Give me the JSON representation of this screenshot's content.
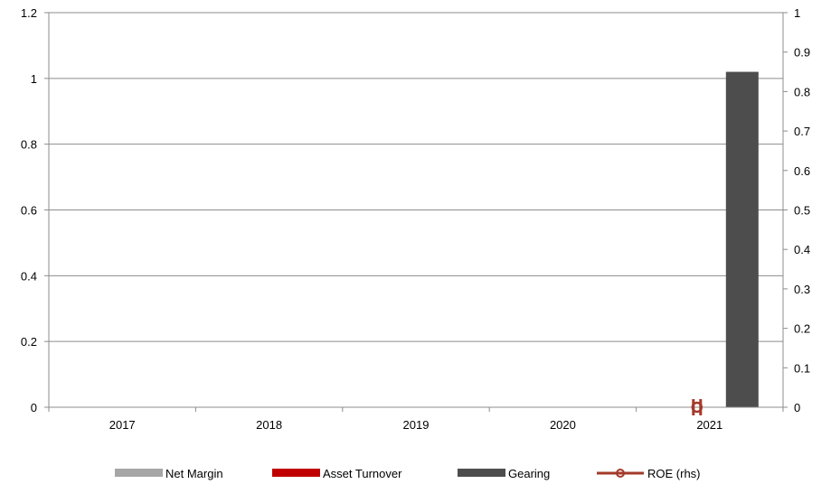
{
  "chart_data": {
    "type": "bar",
    "categories": [
      "2017",
      "2018",
      "2019",
      "2020",
      "2021"
    ],
    "y_left": {
      "ylim": [
        0,
        1.2
      ],
      "ticks": [
        "0",
        "0.2",
        "0.4",
        "0.6",
        "0.8",
        "1",
        "1.2"
      ],
      "tick_values": [
        0,
        0.2,
        0.4,
        0.6,
        0.8,
        1,
        1.2
      ]
    },
    "y_right": {
      "ylim": [
        0,
        1
      ],
      "ticks": [
        "0",
        "0.1",
        "0.2",
        "0.3",
        "0.4",
        "0.5",
        "0.6",
        "0.7",
        "0.8",
        "0.9",
        "1"
      ],
      "tick_values": [
        0,
        0.1,
        0.2,
        0.3,
        0.4,
        0.5,
        0.6,
        0.7,
        0.8,
        0.9,
        1
      ]
    },
    "grid": true,
    "legend_position": "bottom",
    "series": [
      {
        "name": "Net Margin",
        "kind": "bar",
        "axis": "left",
        "color": "#a6a6a6",
        "values": [
          null,
          null,
          null,
          null,
          0
        ]
      },
      {
        "name": "Asset Turnover",
        "kind": "bar",
        "axis": "left",
        "color": "#c00000",
        "values": [
          null,
          null,
          null,
          null,
          0
        ]
      },
      {
        "name": "Gearing",
        "kind": "bar",
        "axis": "left",
        "color": "#4d4d4d",
        "values": [
          null,
          null,
          null,
          null,
          1.02
        ]
      },
      {
        "name": "ROE (rhs)",
        "kind": "line",
        "axis": "right",
        "color": "#a33a2a",
        "values": [
          null,
          null,
          null,
          null,
          0
        ]
      }
    ]
  }
}
